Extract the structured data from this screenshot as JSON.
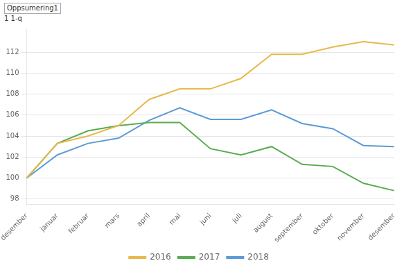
{
  "chart_data": {
    "type": "line",
    "annotations": [
      "Oppsumering1",
      "1 1-q"
    ],
    "categories": [
      "desember",
      "januar",
      "februar",
      "mars",
      "april",
      "mai",
      "juni",
      "juli",
      "august",
      "september",
      "oktober",
      "november",
      "desember"
    ],
    "series": [
      {
        "name": "2016",
        "color": "#e8b84b",
        "values": [
          100.0,
          103.3,
          104.0,
          105.0,
          107.5,
          108.5,
          108.5,
          109.5,
          111.8,
          111.8,
          112.5,
          113.0,
          112.7
        ]
      },
      {
        "name": "2017",
        "color": "#5aab52",
        "values": [
          100.0,
          103.3,
          104.5,
          105.0,
          105.3,
          105.3,
          102.8,
          102.2,
          103.0,
          101.3,
          101.1,
          99.5,
          98.8
        ]
      },
      {
        "name": "2018",
        "color": "#5b9bd5",
        "values": [
          100.0,
          102.2,
          103.3,
          103.8,
          105.5,
          106.7,
          105.6,
          105.6,
          106.5,
          105.2,
          104.7,
          103.1,
          103.0
        ]
      }
    ],
    "ylim": [
      97.5,
      114.2
    ],
    "yticks": [
      98,
      100,
      102,
      104,
      106,
      108,
      110,
      112
    ],
    "grid": "y",
    "legend": "bottom"
  }
}
